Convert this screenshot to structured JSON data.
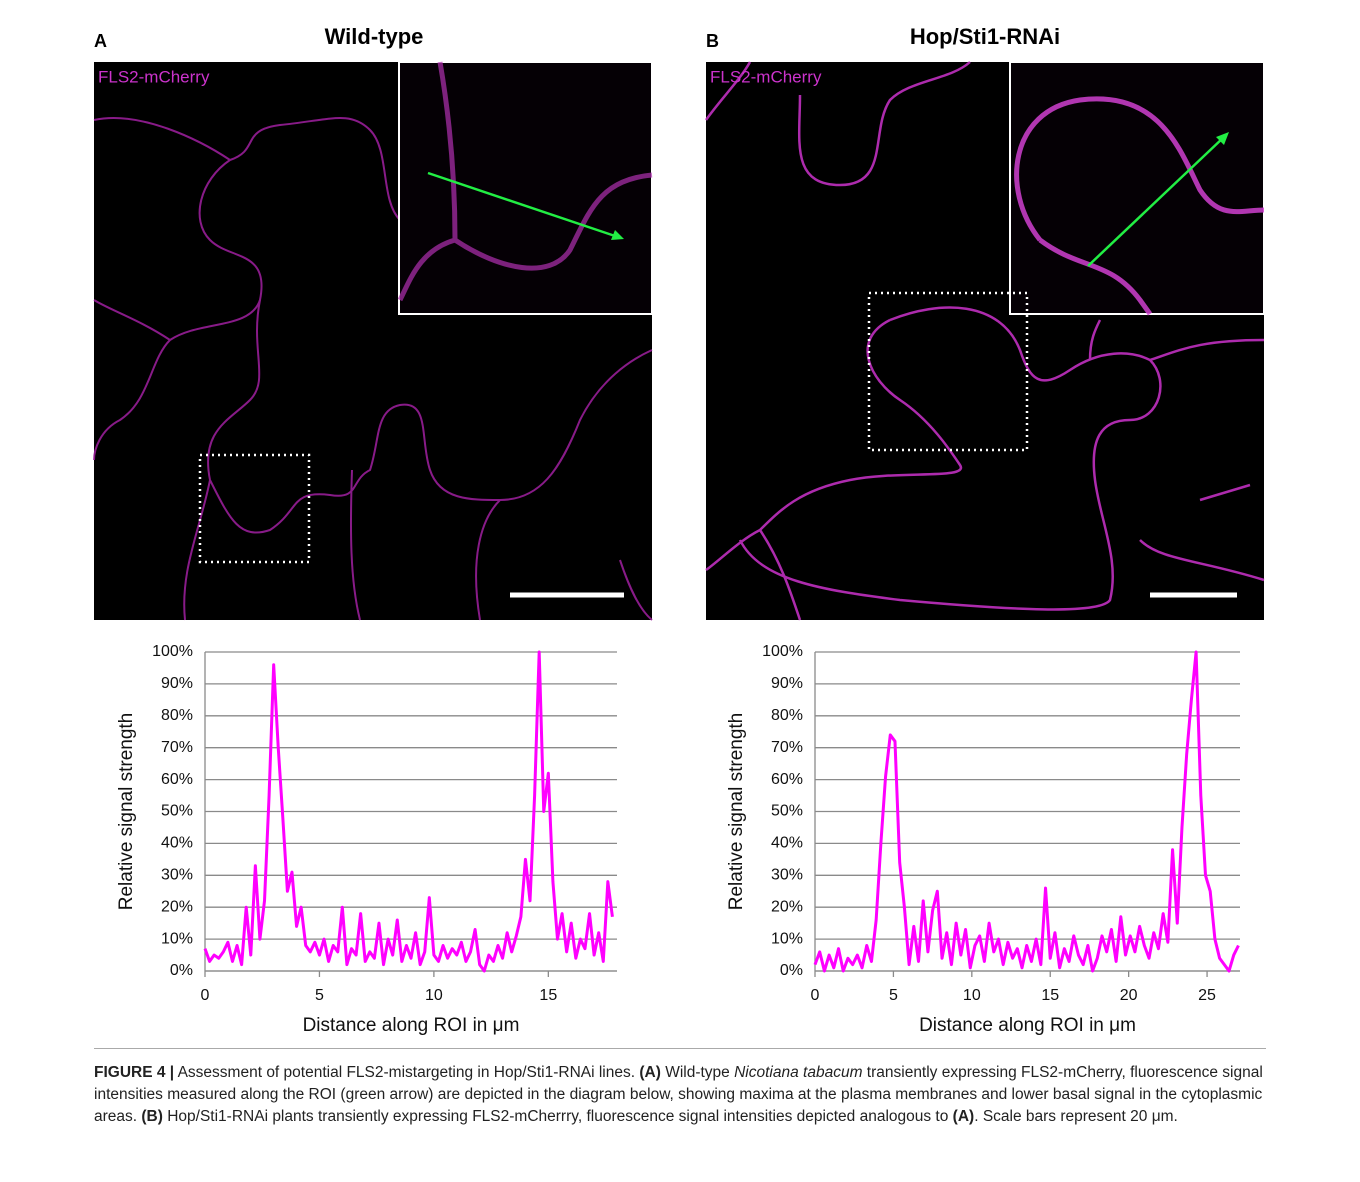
{
  "panels": [
    {
      "letter": "A",
      "title": "Wild-type",
      "channel": "FLS2-mCherry"
    },
    {
      "letter": "B",
      "title": "Hop/Sti1-RNAi",
      "channel": "FLS2-mCherry"
    }
  ],
  "chart_data": [
    {
      "type": "line",
      "y_label": "Relative signal strength",
      "x_label": "Distance along ROI in μm",
      "color": "#ff00ff",
      "x": [
        0,
        0.2,
        0.4,
        0.6,
        0.8,
        1.0,
        1.2,
        1.4,
        1.6,
        1.8,
        2.0,
        2.2,
        2.4,
        2.6,
        2.8,
        3.0,
        3.2,
        3.4,
        3.6,
        3.8,
        4.0,
        4.2,
        4.4,
        4.6,
        4.8,
        5.0,
        5.2,
        5.4,
        5.6,
        5.8,
        6.0,
        6.2,
        6.4,
        6.6,
        6.8,
        7.0,
        7.2,
        7.4,
        7.6,
        7.8,
        8.0,
        8.2,
        8.4,
        8.6,
        8.8,
        9.0,
        9.2,
        9.4,
        9.6,
        9.8,
        10.0,
        10.2,
        10.4,
        10.6,
        10.8,
        11.0,
        11.2,
        11.4,
        11.6,
        11.8,
        12.0,
        12.2,
        12.4,
        12.6,
        12.8,
        13.0,
        13.2,
        13.4,
        13.6,
        13.8,
        14.0,
        14.2,
        14.4,
        14.6,
        14.8,
        15.0,
        15.2,
        15.4,
        15.6,
        15.8,
        16.0,
        16.2,
        16.4,
        16.6,
        16.8,
        17.0,
        17.2,
        17.4,
        17.6,
        17.8
      ],
      "values": [
        7,
        3,
        5,
        4,
        6,
        9,
        3,
        8,
        2,
        20,
        5,
        33,
        10,
        22,
        55,
        96,
        70,
        48,
        25,
        31,
        14,
        20,
        8,
        6,
        9,
        5,
        10,
        3,
        8,
        6,
        20,
        2,
        7,
        5,
        18,
        3,
        6,
        4,
        15,
        2,
        10,
        5,
        16,
        3,
        8,
        4,
        12,
        2,
        6,
        23,
        5,
        3,
        8,
        4,
        7,
        5,
        9,
        3,
        6,
        13,
        2,
        0,
        5,
        3,
        8,
        4,
        12,
        6,
        11,
        17,
        35,
        22,
        55,
        100,
        50,
        62,
        28,
        10,
        18,
        6,
        15,
        4,
        10,
        7,
        18,
        5,
        12,
        3,
        28,
        17
      ],
      "xlim": [
        0,
        18
      ],
      "xticks": [
        0,
        5,
        10,
        15
      ],
      "ylim": [
        0,
        100
      ],
      "yticks": [
        {
          "value": 0,
          "label": "0%"
        },
        {
          "value": 10,
          "label": "10%"
        },
        {
          "value": 20,
          "label": "20%"
        },
        {
          "value": 30,
          "label": "30%"
        },
        {
          "value": 40,
          "label": "40%"
        },
        {
          "value": 50,
          "label": "50%"
        },
        {
          "value": 60,
          "label": "60%"
        },
        {
          "value": 70,
          "label": "70%"
        },
        {
          "value": 80,
          "label": "80%"
        },
        {
          "value": 90,
          "label": "90%"
        },
        {
          "value": 100,
          "label": "100%"
        }
      ],
      "grid": true
    },
    {
      "type": "line",
      "y_label": "Relative signal strength",
      "x_label": "Distance along ROI in μm",
      "color": "#ff00ff",
      "x": [
        0,
        0.3,
        0.6,
        0.9,
        1.2,
        1.5,
        1.8,
        2.1,
        2.4,
        2.7,
        3.0,
        3.3,
        3.6,
        3.9,
        4.2,
        4.5,
        4.8,
        5.1,
        5.4,
        5.7,
        6.0,
        6.3,
        6.6,
        6.9,
        7.2,
        7.5,
        7.8,
        8.1,
        8.4,
        8.7,
        9.0,
        9.3,
        9.6,
        9.9,
        10.2,
        10.5,
        10.8,
        11.1,
        11.4,
        11.7,
        12.0,
        12.3,
        12.6,
        12.9,
        13.2,
        13.5,
        13.8,
        14.1,
        14.4,
        14.7,
        15.0,
        15.3,
        15.6,
        15.9,
        16.2,
        16.5,
        16.8,
        17.1,
        17.4,
        17.7,
        18.0,
        18.3,
        18.6,
        18.9,
        19.2,
        19.5,
        19.8,
        20.1,
        20.4,
        20.7,
        21.0,
        21.3,
        21.6,
        21.9,
        22.2,
        22.5,
        22.8,
        23.1,
        23.4,
        23.7,
        24.0,
        24.3,
        24.6,
        24.9,
        25.2,
        25.5,
        25.8,
        26.1,
        26.4,
        26.7,
        27.0
      ],
      "values": [
        2,
        6,
        0,
        5,
        1,
        7,
        0,
        4,
        2,
        5,
        1,
        8,
        3,
        16,
        40,
        61,
        74,
        72,
        34,
        20,
        2,
        14,
        3,
        22,
        6,
        19,
        25,
        4,
        12,
        2,
        15,
        5,
        13,
        1,
        8,
        11,
        3,
        15,
        6,
        10,
        2,
        9,
        4,
        7,
        1,
        8,
        3,
        10,
        2,
        26,
        4,
        12,
        1,
        7,
        3,
        11,
        5,
        2,
        8,
        0,
        4,
        11,
        6,
        13,
        3,
        17,
        5,
        11,
        6,
        14,
        8,
        4,
        12,
        7,
        18,
        9,
        38,
        15,
        45,
        68,
        85,
        100,
        55,
        30,
        25,
        10,
        4,
        2,
        0,
        5,
        8
      ],
      "xlim": [
        0,
        27.1
      ],
      "xticks": [
        0,
        5,
        10,
        15,
        20,
        25
      ],
      "ylim": [
        0,
        100
      ],
      "yticks": [
        {
          "value": 0,
          "label": "0%"
        },
        {
          "value": 10,
          "label": "10%"
        },
        {
          "value": 20,
          "label": "20%"
        },
        {
          "value": 30,
          "label": "30%"
        },
        {
          "value": 40,
          "label": "40%"
        },
        {
          "value": 50,
          "label": "50%"
        },
        {
          "value": 60,
          "label": "60%"
        },
        {
          "value": 70,
          "label": "70%"
        },
        {
          "value": 80,
          "label": "80%"
        },
        {
          "value": 90,
          "label": "90%"
        },
        {
          "value": 100,
          "label": "100%"
        }
      ],
      "grid": true
    }
  ],
  "caption": [
    "FIGURE 4 |",
    " Assessment of potential FLS2-mistargeting in Hop/Sti1-RNAi lines. ",
    "(A)",
    " Wild-type ",
    "Nicotiana tabacum",
    " transiently expressing FLS2-mCherry, fluorescence signal intensities measured along the ROI (green arrow) are depicted in the diagram below, showing maxima at the plasma membranes and lower basal signal in the cytoplasmic areas. ",
    "(B)",
    " Hop/Sti1-RNAi plants transiently expressing FLS2-mCherrry, fluorescence signal intensities depicted analogous to ",
    "(A)",
    ". Scale bars represent 20 μm."
  ]
}
